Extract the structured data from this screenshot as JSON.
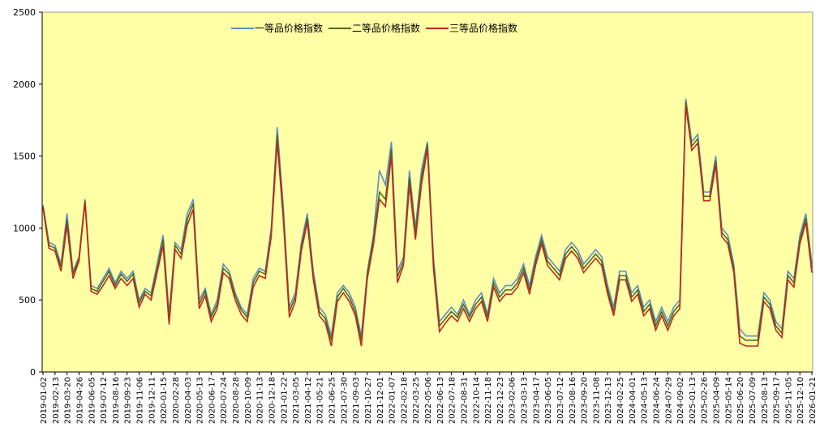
{
  "chart_data": {
    "type": "line",
    "categories": [
      "2019-01-02",
      null,
      "2019-02-13",
      null,
      "2019-03-20",
      null,
      "2019-04-26",
      null,
      "2019-06-05",
      null,
      "2019-07-12",
      null,
      "2019-08-16",
      null,
      "2019-09-23",
      null,
      "2019-11-06",
      null,
      "2019-12-11",
      null,
      "2020-01-15",
      null,
      "2020-02-28",
      null,
      "2020-04-03",
      null,
      "2020-05-13",
      null,
      "2020-06-17",
      null,
      "2020-07-24",
      null,
      "2020-08-28",
      null,
      "2020-10-09",
      null,
      "2020-11-13",
      null,
      "2020-12-18",
      null,
      "2021-01-22",
      null,
      "2021-03-05",
      null,
      "2021-04-12",
      null,
      "2021-05-21",
      null,
      "2021-06-25",
      null,
      "2021-07-30",
      null,
      "2021-09-03",
      null,
      "2021-10-27",
      null,
      "2021-12-01",
      null,
      "2022-01-07",
      null,
      "2022-02-18",
      null,
      "2022-03-25",
      null,
      "2022-05-06",
      null,
      "2022-06-13",
      null,
      "2022-07-18",
      null,
      "2022-08-31",
      null,
      "2022-10-14",
      null,
      "2022-11-18",
      null,
      "2022-12-23",
      null,
      "2023-02-06",
      null,
      "2023-03-13",
      null,
      "2023-04-17",
      null,
      "2023-06-05",
      null,
      "2023-07-12",
      null,
      "2023-08-16",
      null,
      "2023-09-20",
      null,
      "2023-11-08",
      null,
      "2023-12-13",
      null,
      "2024-02-25",
      null,
      "2024-04-01",
      null,
      "2024-05-13",
      null,
      "2024-06-24",
      null,
      "2024-07-29",
      null,
      "2024-09-02",
      null,
      "2025-01-13",
      null,
      "2025-02-26",
      null,
      "2025-04-09",
      null,
      "2025-05-14",
      null,
      "2025-06-20",
      null,
      "2025-07-09",
      null,
      "2025-08-13",
      null,
      "2025-09-17",
      null,
      "2025-11-05",
      null,
      "2025-12-10",
      null,
      "2026-01-21"
    ],
    "series": [
      {
        "name": "一等品价格指数",
        "color": "#5b8fc9",
        "values": [
          1160,
          900,
          880,
          750,
          1100,
          700,
          800,
          1200,
          600,
          580,
          650,
          720,
          620,
          700,
          650,
          700,
          500,
          580,
          550,
          750,
          950,
          400,
          900,
          850,
          1100,
          1200,
          500,
          580,
          400,
          500,
          750,
          700,
          550,
          450,
          400,
          650,
          720,
          700,
          1000,
          1700,
          1150,
          450,
          550,
          900,
          1100,
          700,
          450,
          400,
          250,
          550,
          600,
          550,
          450,
          250,
          700,
          950,
          1400,
          1300,
          1600,
          700,
          800,
          1400,
          1000,
          1400,
          1600,
          800,
          350,
          400,
          450,
          400,
          500,
          400,
          500,
          550,
          400,
          650,
          550,
          600,
          600,
          650,
          750,
          600,
          800,
          950,
          800,
          750,
          700,
          850,
          900,
          850,
          750,
          800,
          850,
          800,
          600,
          450,
          700,
          700,
          550,
          600,
          450,
          500,
          350,
          450,
          350,
          450,
          500,
          1900,
          1600,
          1650,
          1250,
          1250,
          1500,
          1000,
          950,
          750,
          300,
          250,
          250,
          250,
          550,
          500,
          350,
          300,
          700,
          650,
          950,
          1100,
          750
        ]
      },
      {
        "name": "二等品价格指数",
        "color": "#4e6b1f",
        "values": [
          1150,
          880,
          860,
          730,
          1060,
          680,
          790,
          1190,
          580,
          560,
          630,
          700,
          600,
          680,
          630,
          680,
          480,
          560,
          530,
          720,
          920,
          370,
          880,
          820,
          1060,
          1170,
          470,
          560,
          380,
          470,
          720,
          680,
          530,
          430,
          380,
          620,
          700,
          680,
          970,
          1650,
          1100,
          420,
          520,
          870,
          1070,
          670,
          420,
          370,
          220,
          520,
          580,
          520,
          420,
          220,
          680,
          920,
          1250,
          1200,
          1550,
          660,
          770,
          1350,
          960,
          1350,
          1580,
          760,
          320,
          370,
          420,
          380,
          470,
          380,
          470,
          520,
          380,
          620,
          520,
          570,
          570,
          620,
          720,
          570,
          770,
          920,
          770,
          720,
          670,
          820,
          870,
          820,
          720,
          770,
          820,
          770,
          570,
          420,
          670,
          670,
          520,
          570,
          420,
          470,
          320,
          420,
          320,
          420,
          470,
          1880,
          1570,
          1620,
          1220,
          1220,
          1470,
          970,
          920,
          720,
          250,
          220,
          220,
          220,
          520,
          470,
          320,
          270,
          670,
          620,
          920,
          1070,
          720
        ]
      },
      {
        "name": "三等品价格指数",
        "color": "#c0281c",
        "values": [
          1140,
          860,
          840,
          700,
          1020,
          650,
          770,
          1180,
          560,
          540,
          600,
          670,
          580,
          650,
          600,
          650,
          450,
          540,
          500,
          690,
          880,
          330,
          850,
          790,
          1020,
          1130,
          440,
          530,
          350,
          440,
          690,
          650,
          500,
          400,
          350,
          590,
          670,
          650,
          940,
          1600,
          1060,
          380,
          490,
          840,
          1040,
          640,
          390,
          340,
          180,
          490,
          550,
          490,
          390,
          180,
          650,
          880,
          1200,
          1150,
          1500,
          620,
          740,
          1300,
          920,
          1300,
          1550,
          720,
          280,
          340,
          390,
          350,
          440,
          350,
          440,
          490,
          350,
          590,
          490,
          540,
          540,
          590,
          690,
          540,
          740,
          890,
          740,
          690,
          640,
          790,
          840,
          790,
          690,
          740,
          790,
          740,
          540,
          390,
          640,
          640,
          490,
          540,
          390,
          440,
          290,
          390,
          290,
          390,
          440,
          1850,
          1540,
          1590,
          1190,
          1190,
          1440,
          940,
          890,
          690,
          200,
          180,
          180,
          180,
          490,
          440,
          290,
          240,
          640,
          590,
          890,
          1040,
          690
        ]
      }
    ],
    "ylim": [
      0,
      2500
    ],
    "yticks": [
      0,
      500,
      1000,
      1500,
      2000,
      2500
    ],
    "background": "#ffffa6",
    "legend": "top"
  }
}
